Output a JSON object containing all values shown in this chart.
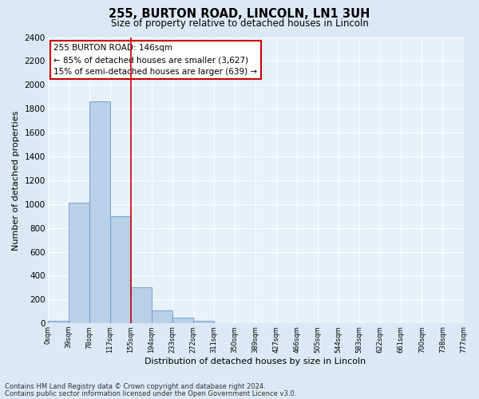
{
  "title": "255, BURTON ROAD, LINCOLN, LN1 3UH",
  "subtitle": "Size of property relative to detached houses in Lincoln",
  "xlabel": "Distribution of detached houses by size in Lincoln",
  "ylabel": "Number of detached properties",
  "bin_labels": [
    "0sqm",
    "39sqm",
    "78sqm",
    "117sqm",
    "155sqm",
    "194sqm",
    "233sqm",
    "272sqm",
    "311sqm",
    "350sqm",
    "389sqm",
    "427sqm",
    "466sqm",
    "505sqm",
    "544sqm",
    "583sqm",
    "622sqm",
    "661sqm",
    "700sqm",
    "738sqm",
    "777sqm"
  ],
  "bar_heights": [
    20,
    1010,
    1860,
    900,
    300,
    105,
    45,
    20,
    0,
    0,
    0,
    0,
    0,
    0,
    0,
    0,
    0,
    0,
    0,
    0
  ],
  "bar_color": "#b8d0e8",
  "bar_edge_color": "#6699cc",
  "vline_x_idx": 4,
  "vline_color": "#cc0000",
  "annotation_title": "255 BURTON ROAD: 146sqm",
  "annotation_line1": "← 85% of detached houses are smaller (3,627)",
  "annotation_line2": "15% of semi-detached houses are larger (639) →",
  "annotation_box_edge_color": "#cc0000",
  "ylim": [
    0,
    2400
  ],
  "yticks": [
    0,
    200,
    400,
    600,
    800,
    1000,
    1200,
    1400,
    1600,
    1800,
    2000,
    2200,
    2400
  ],
  "footnote1": "Contains HM Land Registry data © Crown copyright and database right 2024.",
  "footnote2": "Contains public sector information licensed under the Open Government Licence v3.0.",
  "bg_color": "#dce8f5",
  "plot_bg_color": "#e8f0f8"
}
